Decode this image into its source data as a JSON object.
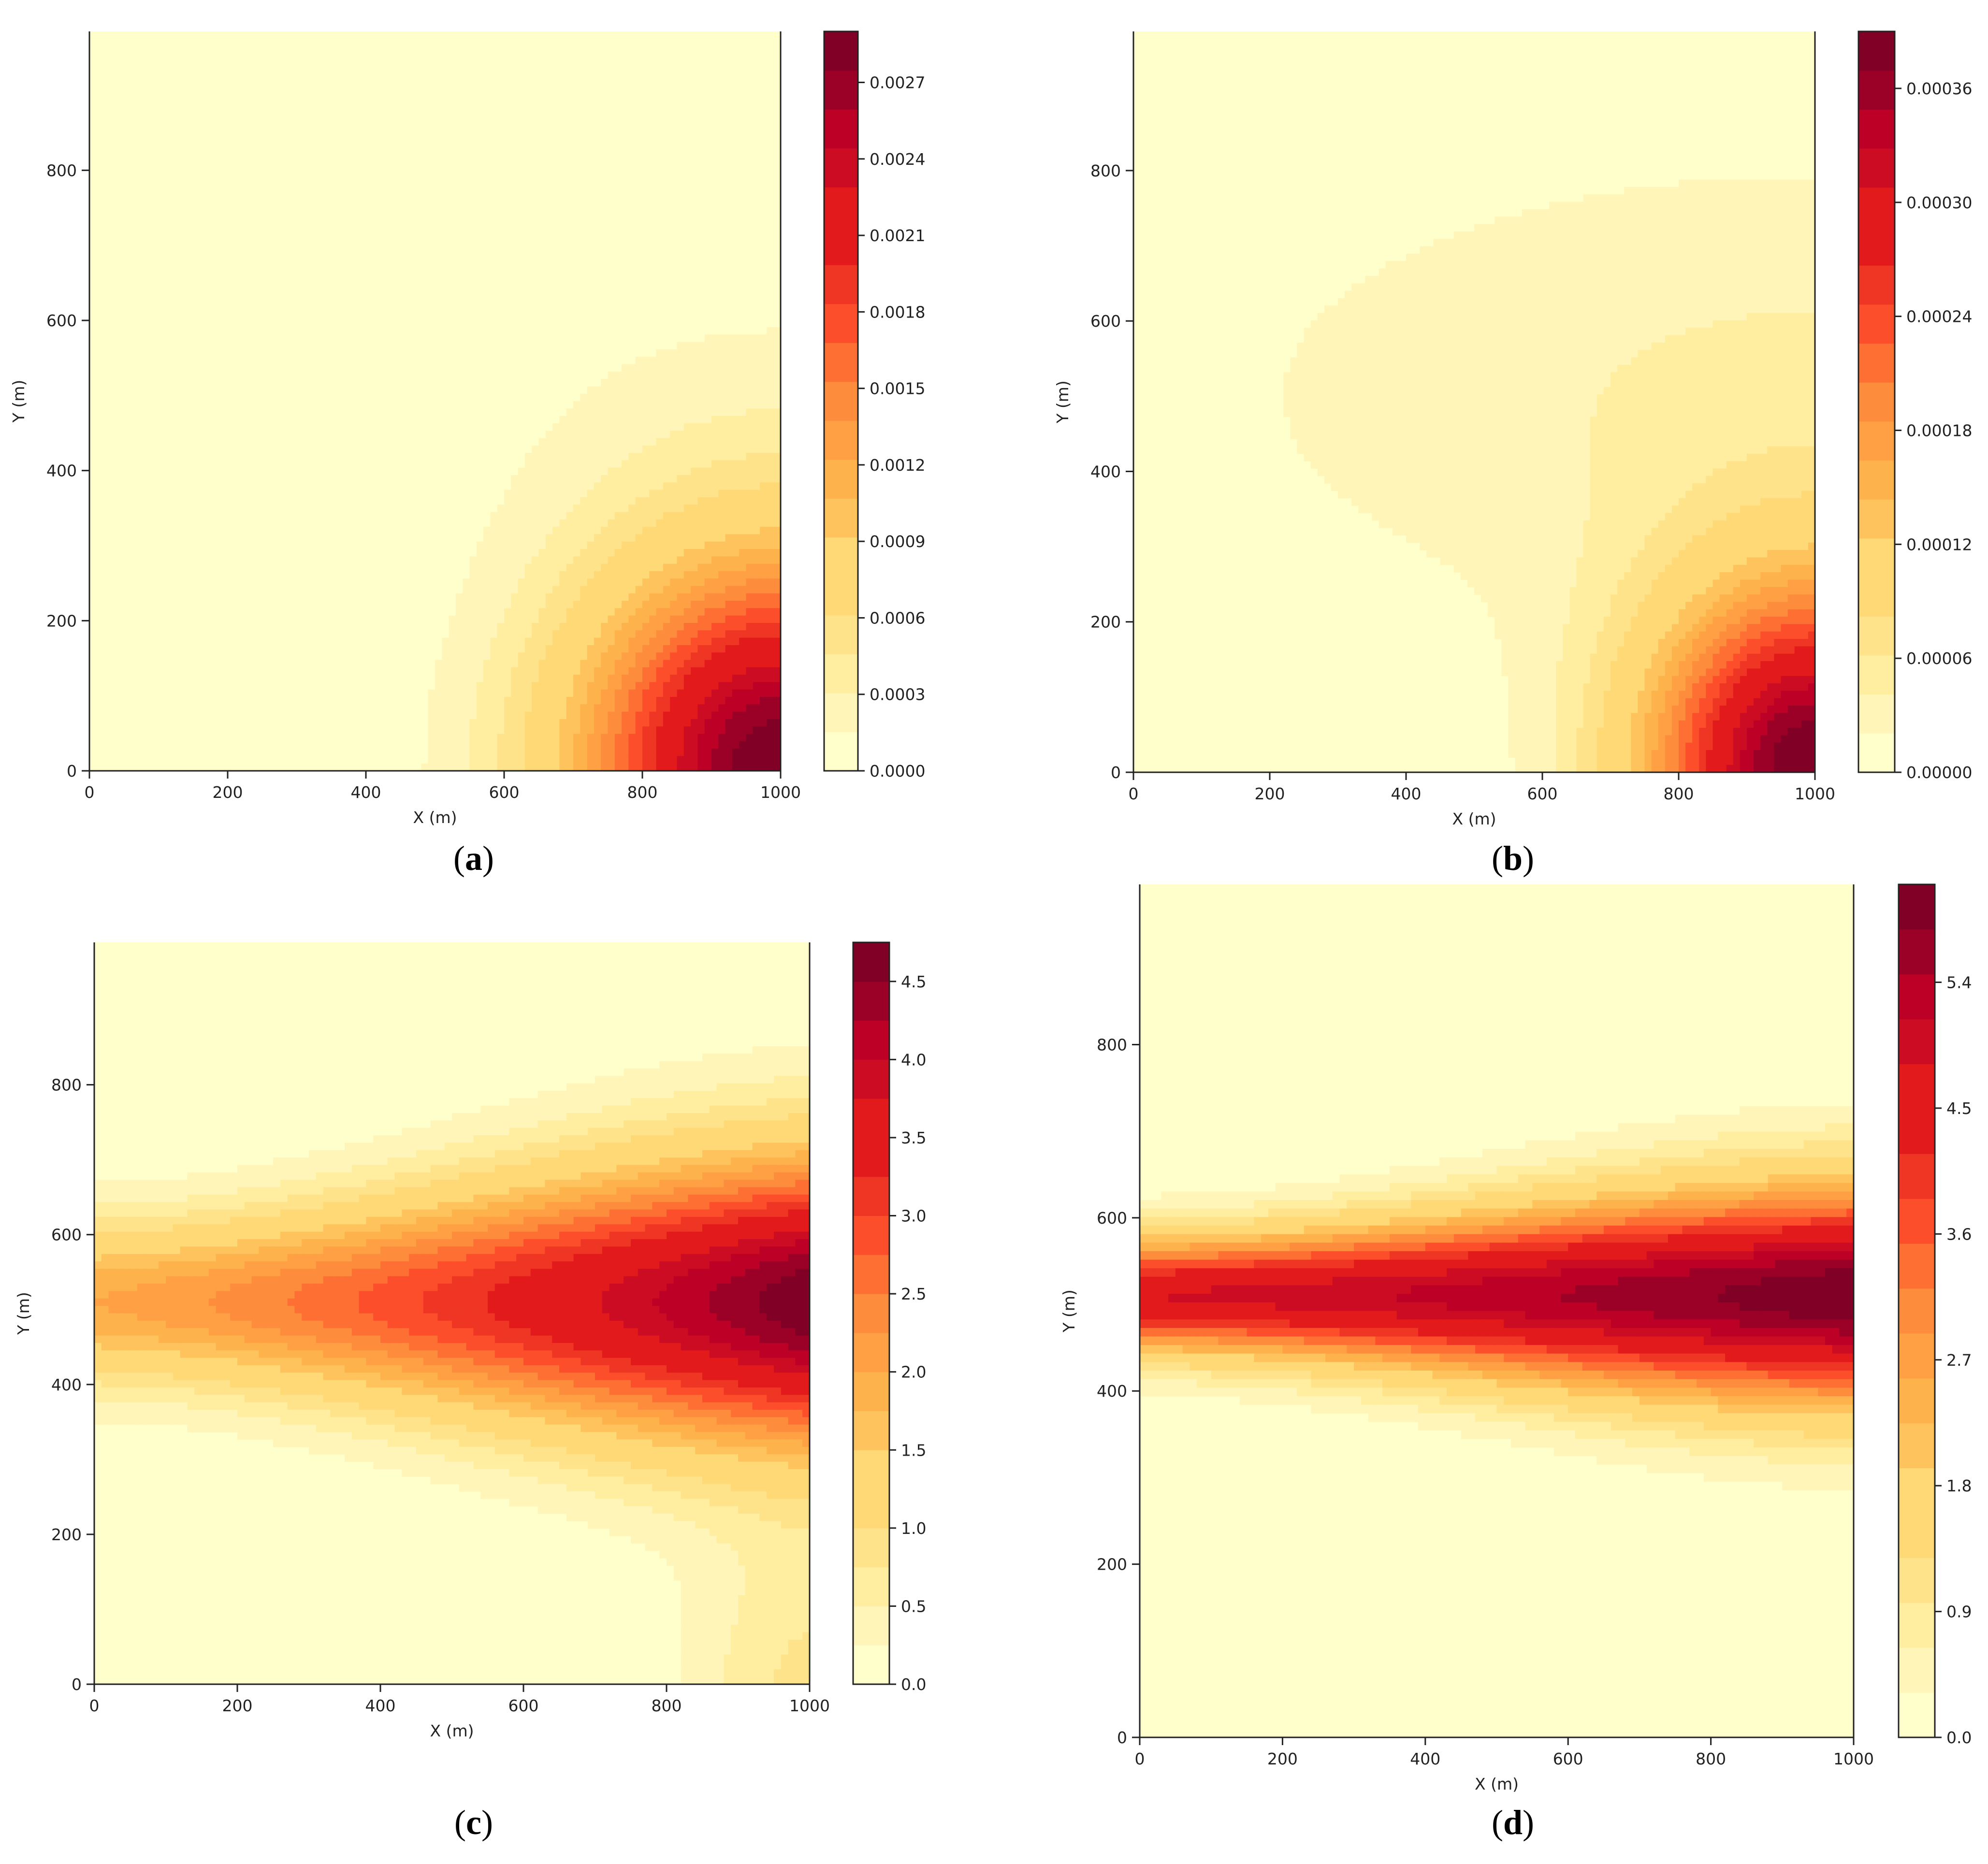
{
  "colors": {
    "palette": [
      "#ffffcc",
      "#fff5b8",
      "#ffeda0",
      "#fee38a",
      "#fed976",
      "#fec35c",
      "#feb24c",
      "#fea043",
      "#fd8d3c",
      "#fd6f33",
      "#fc4e2a",
      "#ef3523",
      "#e31a1c",
      "#cc0c22",
      "#bd0026",
      "#9b0026",
      "#800026"
    ],
    "axis": "#222222",
    "background": "#ffffff"
  },
  "chart_data": [
    {
      "type": "heatmap",
      "caption": "a",
      "xlabel": "X (m)",
      "ylabel": "Y (m)",
      "xlim": [
        0,
        1000
      ],
      "ylim": [
        0,
        985
      ],
      "xticks": [
        "0",
        "200",
        "400",
        "600",
        "800",
        "1000"
      ],
      "yticks": [
        "0",
        "200",
        "400",
        "600",
        "800"
      ],
      "colorbar": {
        "min": 0.0,
        "max": 0.0029,
        "levels": 19,
        "ticks": [
          "0.0000",
          "0.0003",
          "0.0006",
          "0.0009",
          "0.0012",
          "0.0015",
          "0.0018",
          "0.0021",
          "0.0024",
          "0.0027"
        ]
      },
      "features": [
        {
          "kind": "source",
          "x": 1000,
          "y": 0,
          "peak": 0.0029,
          "rx": 300,
          "ry": 290
        },
        {
          "kind": "plume",
          "x": 1000,
          "y": 500,
          "peak": 0.00012,
          "rx": 580,
          "ry": 230
        }
      ]
    },
    {
      "type": "heatmap",
      "caption": "b",
      "xlabel": "X (m)",
      "ylabel": "Y (m)",
      "xlim": [
        0,
        1000
      ],
      "ylim": [
        0,
        985
      ],
      "xticks": [
        "0",
        "200",
        "400",
        "600",
        "800",
        "1000"
      ],
      "yticks": [
        "0",
        "200",
        "400",
        "600",
        "800"
      ],
      "colorbar": {
        "min": 0.0,
        "max": 0.00039,
        "levels": 19,
        "ticks": [
          "0.00000",
          "0.00006",
          "0.00012",
          "0.00018",
          "0.00024",
          "0.00030",
          "0.00036"
        ]
      },
      "features": [
        {
          "kind": "source",
          "x": 1000,
          "y": 0,
          "peak": 0.00039,
          "rx": 250,
          "ry": 250
        },
        {
          "kind": "plume",
          "x": 1000,
          "y": 500,
          "peak": 4.5e-05,
          "rx": 880,
          "ry": 330
        }
      ]
    },
    {
      "type": "heatmap",
      "caption": "c",
      "xlabel": "X (m)",
      "ylabel": "Y (m)",
      "xlim": [
        0,
        1000
      ],
      "ylim": [
        0,
        990
      ],
      "xticks": [
        "0",
        "200",
        "400",
        "600",
        "800",
        "1000"
      ],
      "yticks": [
        "0",
        "200",
        "400",
        "600",
        "800"
      ],
      "colorbar": {
        "min": 0.0,
        "max": 4.75,
        "levels": 19,
        "ticks": [
          "0.0",
          "0.5",
          "1.0",
          "1.5",
          "2.0",
          "2.5",
          "3.0",
          "3.5",
          "4.0",
          "4.5"
        ]
      },
      "features": [
        {
          "kind": "band",
          "x0": 0,
          "y0": 510,
          "peak_left": 2.0,
          "peak_right": 4.75,
          "width_left": 110,
          "width_right": 200
        },
        {
          "kind": "source",
          "x": 1000,
          "y": 0,
          "peak": 0.8,
          "rx": 170,
          "ry": 200
        }
      ]
    },
    {
      "type": "heatmap",
      "caption": "d",
      "xlabel": "X (m)",
      "ylabel": "Y (m)",
      "xlim": [
        0,
        1000
      ],
      "ylim": [
        0,
        985
      ],
      "xticks": [
        "0",
        "200",
        "400",
        "600",
        "800",
        "1000"
      ],
      "yticks": [
        "0",
        "200",
        "400",
        "600",
        "800"
      ],
      "colorbar": {
        "min": 0.0,
        "max": 6.1,
        "levels": 19,
        "ticks": [
          "0.0",
          "0.9",
          "1.8",
          "2.7",
          "3.6",
          "4.5",
          "5.4"
        ]
      },
      "features": [
        {
          "kind": "band",
          "x0": 0,
          "y0": 510,
          "peak_left": 4.8,
          "peak_right": 6.1,
          "width_left": 70,
          "width_right": 130
        }
      ]
    }
  ]
}
